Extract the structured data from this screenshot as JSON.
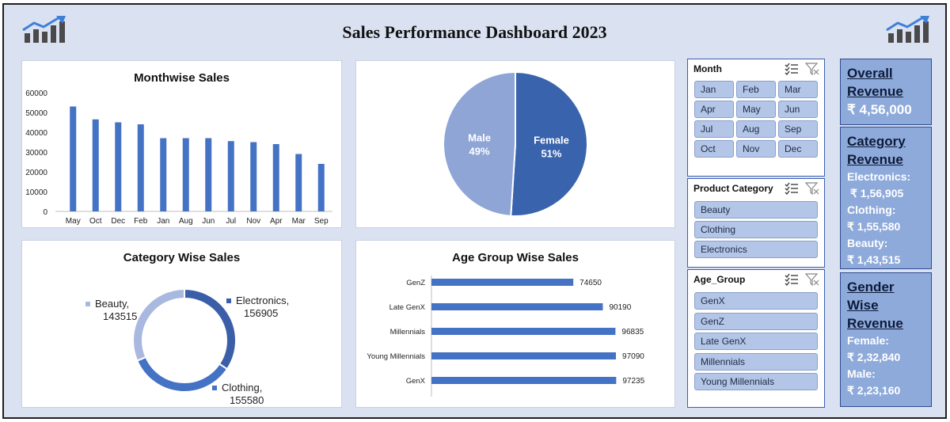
{
  "header": {
    "title": "Sales Performance Dashboard 2023",
    "left_logo_icon": "bar-chart-growth-icon",
    "right_logo_icon": "bar-chart-growth-icon"
  },
  "colors": {
    "bar": "#4472c4",
    "pie_female": "#3a63ad",
    "pie_male": "#8ea5d6",
    "donut_electronics": "#3a5fa8",
    "donut_clothing": "#4472c4",
    "donut_beauty": "#a9b8de"
  },
  "monthwise": {
    "chart_data": {
      "type": "bar",
      "title": "Monthwise Sales",
      "categories": [
        "May",
        "Oct",
        "Dec",
        "Feb",
        "Jan",
        "Aug",
        "Jun",
        "Jul",
        "Nov",
        "Apr",
        "Mar",
        "Sep"
      ],
      "values": [
        53000,
        46500,
        45000,
        44000,
        37000,
        37000,
        37000,
        35500,
        35000,
        34000,
        29000,
        24000
      ],
      "yticks": [
        "0",
        "10000",
        "20000",
        "30000",
        "40000",
        "50000",
        "60000"
      ],
      "ylim": [
        0,
        60000
      ]
    }
  },
  "gender": {
    "chart_data": {
      "type": "pie",
      "slices": [
        {
          "label": "Female",
          "pct_label": "51%",
          "value": 51
        },
        {
          "label": "Male",
          "pct_label": "49%",
          "value": 49
        }
      ]
    }
  },
  "category": {
    "chart_data": {
      "type": "pie",
      "title": "Category Wise Sales",
      "slices": [
        {
          "label": "Electronics,",
          "value_label": "156905",
          "value": 156905
        },
        {
          "label": "Clothing,",
          "value_label": "155580",
          "value": 155580
        },
        {
          "label": "Beauty,",
          "value_label": "143515",
          "value": 143515
        }
      ]
    }
  },
  "agegroup": {
    "chart_data": {
      "type": "bar",
      "title": "Age Group Wise Sales",
      "categories": [
        "GenZ",
        "Late GenX",
        "Millennials",
        "Young Millennials",
        "GenX"
      ],
      "values": [
        74650,
        90190,
        96835,
        97090,
        97235
      ],
      "value_labels": [
        "74650",
        "90190",
        "96835",
        "97090",
        "97235"
      ]
    }
  },
  "slicers": {
    "month": {
      "title": "Month",
      "items": [
        "Jan",
        "Feb",
        "Mar",
        "Apr",
        "May",
        "Jun",
        "Jul",
        "Aug",
        "Sep",
        "Oct",
        "Nov",
        "Dec"
      ]
    },
    "category": {
      "title": "Product Category",
      "items": [
        "Beauty",
        "Clothing",
        "Electronics"
      ]
    },
    "age": {
      "title": "Age_Group",
      "items": [
        "GenX",
        "GenZ",
        "Late GenX",
        "Millennials",
        "Young Millennials"
      ]
    }
  },
  "kpi": {
    "overall": {
      "title": "Overall Revenue",
      "value": "₹ 4,56,000"
    },
    "category": {
      "title": "Category Revenue",
      "lines": [
        "Electronics:",
        "₹ 1,56,905",
        "Clothing:",
        "₹ 1,55,580",
        "Beauty:",
        "₹ 1,43,515"
      ]
    },
    "gender": {
      "title": "Gender Wise Revenue",
      "lines": [
        "Female:",
        "₹ 2,32,840",
        "Male:",
        "₹ 2,23,160"
      ]
    }
  }
}
